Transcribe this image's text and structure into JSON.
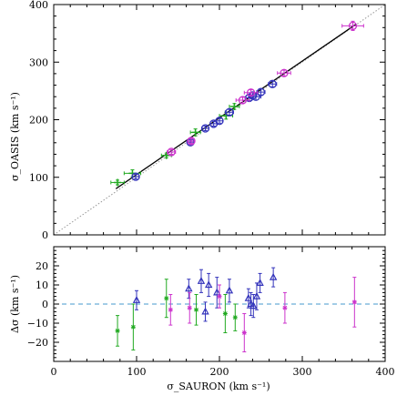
{
  "chart_data": [
    {
      "type": "scatter",
      "panel": "top",
      "ylabel": "σ_OASIS (km s⁻¹)",
      "xlim": [
        0,
        400
      ],
      "ylim": [
        0,
        400
      ],
      "xticks": [
        "0",
        "100",
        "200",
        "300",
        "400"
      ],
      "yticks": [
        "0",
        "100",
        "200",
        "300",
        "400"
      ],
      "grid": false,
      "lines": [
        {
          "name": "one-to-one",
          "style": "dotted",
          "color": "#999999",
          "x": [
            0,
            400
          ],
          "y": [
            0,
            400
          ]
        },
        {
          "name": "fit",
          "style": "solid",
          "color": "#000000",
          "x": [
            75,
            365
          ],
          "y": [
            80,
            366
          ]
        }
      ],
      "series": [
        {
          "color": "#22aa22",
          "marker": "plus",
          "points": [
            {
              "x": 77,
              "y": 91,
              "xerr": 8,
              "yerr": 4
            },
            {
              "x": 95,
              "y": 107,
              "xerr": 10,
              "yerr": 6
            },
            {
              "x": 136,
              "y": 138,
              "xerr": 6,
              "yerr": 4
            },
            {
              "x": 171,
              "y": 178,
              "xerr": 6,
              "yerr": 6
            },
            {
              "x": 208,
              "y": 207,
              "xerr": 8,
              "yerr": 6
            },
            {
              "x": 218,
              "y": 223,
              "xerr": 6,
              "yerr": 5
            }
          ]
        },
        {
          "color": "#3333bb",
          "marker": "circle",
          "points": [
            {
              "x": 99,
              "y": 101,
              "xerr": 4,
              "yerr": 4
            },
            {
              "x": 165,
              "y": 161,
              "xerr": 4,
              "yerr": 4
            },
            {
              "x": 183,
              "y": 185,
              "xerr": 4,
              "yerr": 4
            },
            {
              "x": 193,
              "y": 193,
              "xerr": 4,
              "yerr": 4
            },
            {
              "x": 200,
              "y": 198,
              "xerr": 4,
              "yerr": 4
            },
            {
              "x": 212,
              "y": 213,
              "xerr": 5,
              "yerr": 5
            },
            {
              "x": 236,
              "y": 238,
              "xerr": 5,
              "yerr": 5
            },
            {
              "x": 240,
              "y": 242,
              "xerr": 5,
              "yerr": 5
            },
            {
              "x": 244,
              "y": 240,
              "xerr": 6,
              "yerr": 6
            },
            {
              "x": 250,
              "y": 248,
              "xerr": 5,
              "yerr": 5
            },
            {
              "x": 264,
              "y": 262,
              "xerr": 5,
              "yerr": 5
            }
          ]
        },
        {
          "color": "#cc33cc",
          "marker": "circle",
          "points": [
            {
              "x": 142,
              "y": 144,
              "xerr": 5,
              "yerr": 4
            },
            {
              "x": 166,
              "y": 163,
              "xerr": 4,
              "yerr": 4
            },
            {
              "x": 228,
              "y": 234,
              "xerr": 8,
              "yerr": 5
            },
            {
              "x": 238,
              "y": 247,
              "xerr": 8,
              "yerr": 5
            },
            {
              "x": 278,
              "y": 281,
              "xerr": 8,
              "yerr": 5
            },
            {
              "x": 361,
              "y": 363,
              "xerr": 13,
              "yerr": 8
            }
          ]
        }
      ]
    },
    {
      "type": "scatter",
      "panel": "bottom",
      "xlabel": "σ_SAURON (km s⁻¹)",
      "ylabel": "Δσ (km s⁻¹)",
      "xlim": [
        0,
        400
      ],
      "ylim": [
        -30,
        30
      ],
      "xticks": [
        "0",
        "100",
        "200",
        "300",
        "400"
      ],
      "yticks": [
        "−20",
        "−10",
        "0",
        "10",
        "20"
      ],
      "ytick_values": [
        -20,
        -10,
        0,
        10,
        20
      ],
      "grid": false,
      "lines": [
        {
          "name": "zero",
          "style": "dashed",
          "color": "#4499cc",
          "x": [
            0,
            400
          ],
          "y": [
            0,
            0
          ]
        }
      ],
      "series": [
        {
          "color": "#22aa22",
          "marker": "star",
          "points": [
            {
              "x": 77,
              "y": -14,
              "yerr": 8
            },
            {
              "x": 96,
              "y": -12,
              "yerr": 12
            },
            {
              "x": 136,
              "y": 3,
              "yerr": 10
            },
            {
              "x": 172,
              "y": -3,
              "yerr": 8
            },
            {
              "x": 207,
              "y": -5,
              "yerr": 10
            },
            {
              "x": 219,
              "y": -7,
              "yerr": 7
            }
          ]
        },
        {
          "color": "#3333bb",
          "marker": "triangle",
          "points": [
            {
              "x": 100,
              "y": 2,
              "yerr": 5
            },
            {
              "x": 163,
              "y": 8,
              "yerr": 5
            },
            {
              "x": 178,
              "y": 12,
              "yerr": 6
            },
            {
              "x": 183,
              "y": -4,
              "yerr": 5
            },
            {
              "x": 187,
              "y": 10,
              "yerr": 6
            },
            {
              "x": 197,
              "y": 6,
              "yerr": 8
            },
            {
              "x": 212,
              "y": 7,
              "yerr": 6
            },
            {
              "x": 235,
              "y": 3,
              "yerr": 5
            },
            {
              "x": 238,
              "y": 0,
              "yerr": 6
            },
            {
              "x": 241,
              "y": -1,
              "yerr": 6
            },
            {
              "x": 245,
              "y": 4,
              "yerr": 7
            },
            {
              "x": 249,
              "y": 11,
              "yerr": 5
            },
            {
              "x": 265,
              "y": 14,
              "yerr": 5
            }
          ]
        },
        {
          "color": "#cc33cc",
          "marker": "star",
          "points": [
            {
              "x": 141,
              "y": -3,
              "yerr": 8
            },
            {
              "x": 164,
              "y": -2,
              "yerr": 8
            },
            {
              "x": 200,
              "y": 4,
              "yerr": 6
            },
            {
              "x": 230,
              "y": -15,
              "yerr": 10
            },
            {
              "x": 279,
              "y": -2,
              "yerr": 8
            },
            {
              "x": 363,
              "y": 1,
              "yerr": 13
            }
          ]
        }
      ]
    }
  ]
}
